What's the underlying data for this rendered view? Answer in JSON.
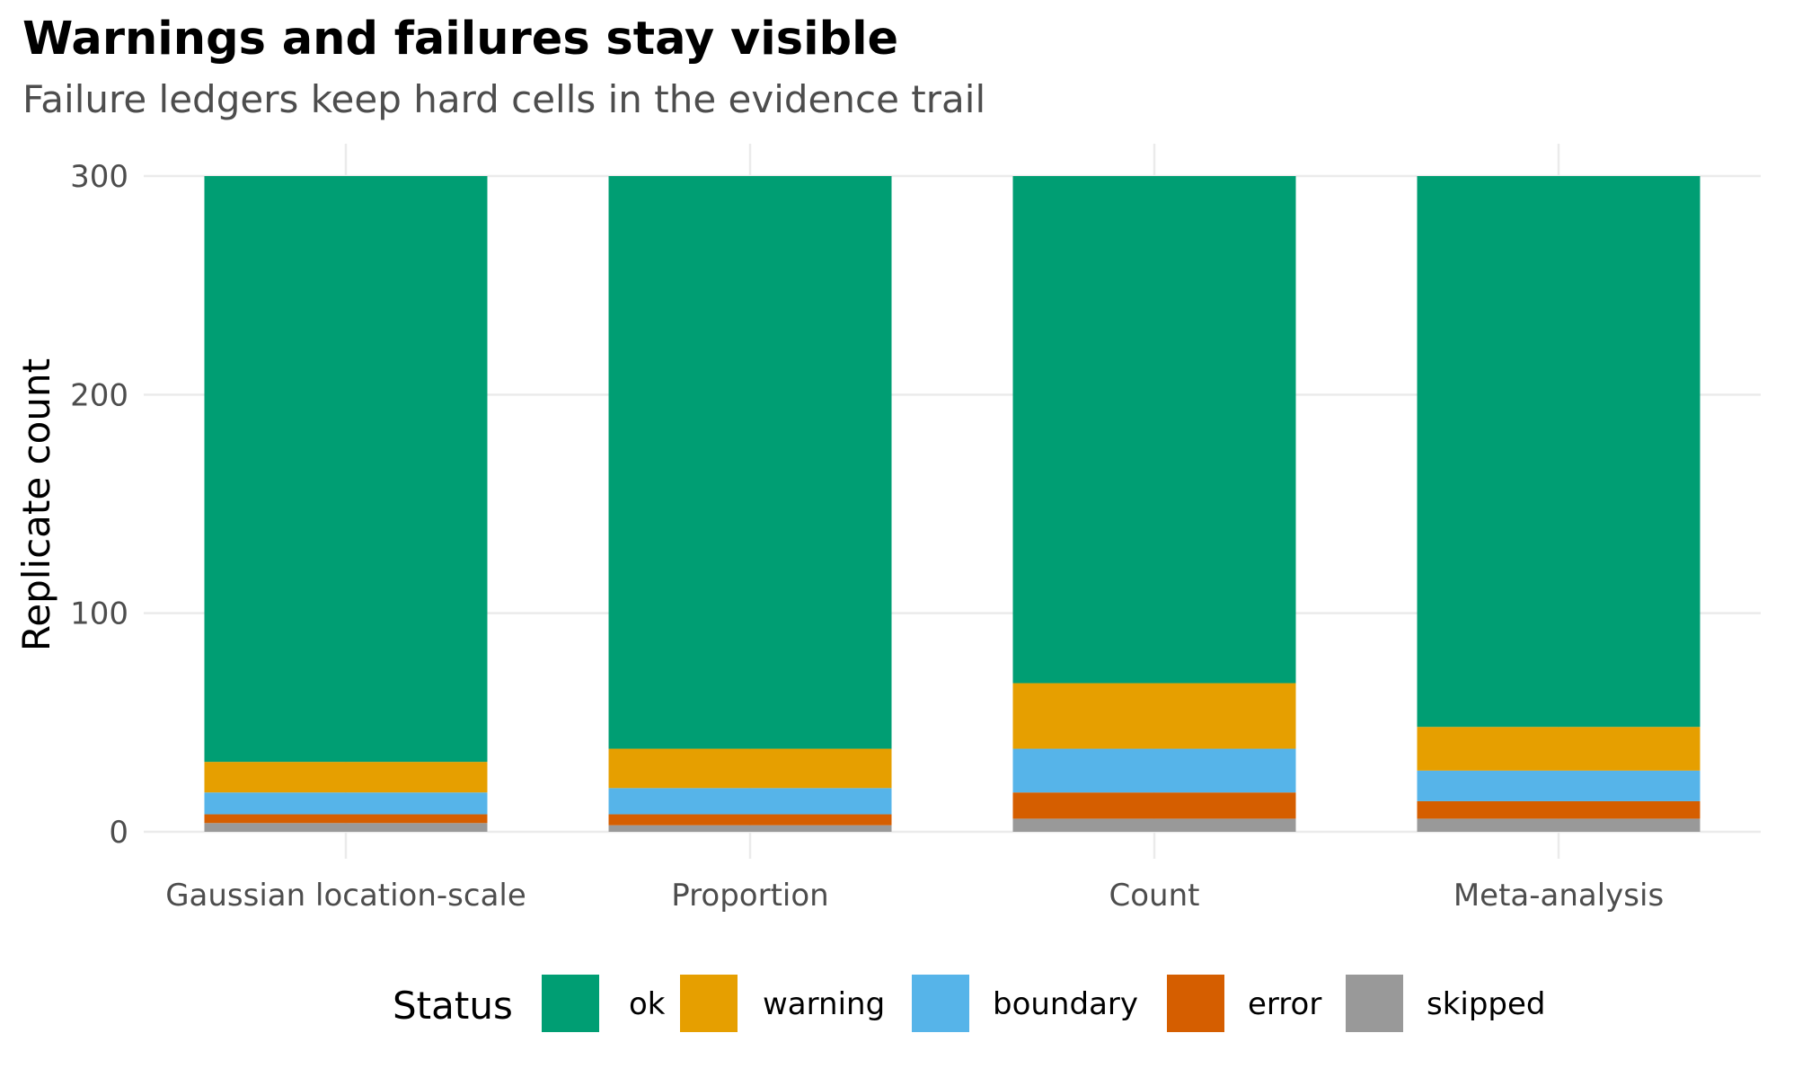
{
  "chart_data": {
    "type": "bar",
    "stacked": true,
    "title": "Warnings and failures stay visible",
    "subtitle": "Failure ledgers keep hard cells in the evidence trail",
    "xlabel": "",
    "ylabel": "Replicate count",
    "ylim": [
      0,
      300
    ],
    "yticks": [
      0,
      100,
      200,
      300
    ],
    "grid": true,
    "categories": [
      "Gaussian location-scale",
      "Proportion",
      "Count",
      "Meta-analysis"
    ],
    "series": [
      {
        "name": "skipped",
        "color": "#999999",
        "values": [
          4,
          3,
          6,
          6
        ]
      },
      {
        "name": "error",
        "color": "#D55E00",
        "values": [
          4,
          5,
          12,
          8
        ]
      },
      {
        "name": "boundary",
        "color": "#56B4E9",
        "values": [
          10,
          12,
          20,
          14
        ]
      },
      {
        "name": "warning",
        "color": "#E69F00",
        "values": [
          14,
          18,
          30,
          20
        ]
      },
      {
        "name": "ok",
        "color": "#009E73",
        "values": [
          268,
          262,
          232,
          252
        ]
      }
    ],
    "legend": {
      "title": "Status",
      "position": "bottom",
      "order": [
        "ok",
        "warning",
        "boundary",
        "error",
        "skipped"
      ]
    }
  }
}
